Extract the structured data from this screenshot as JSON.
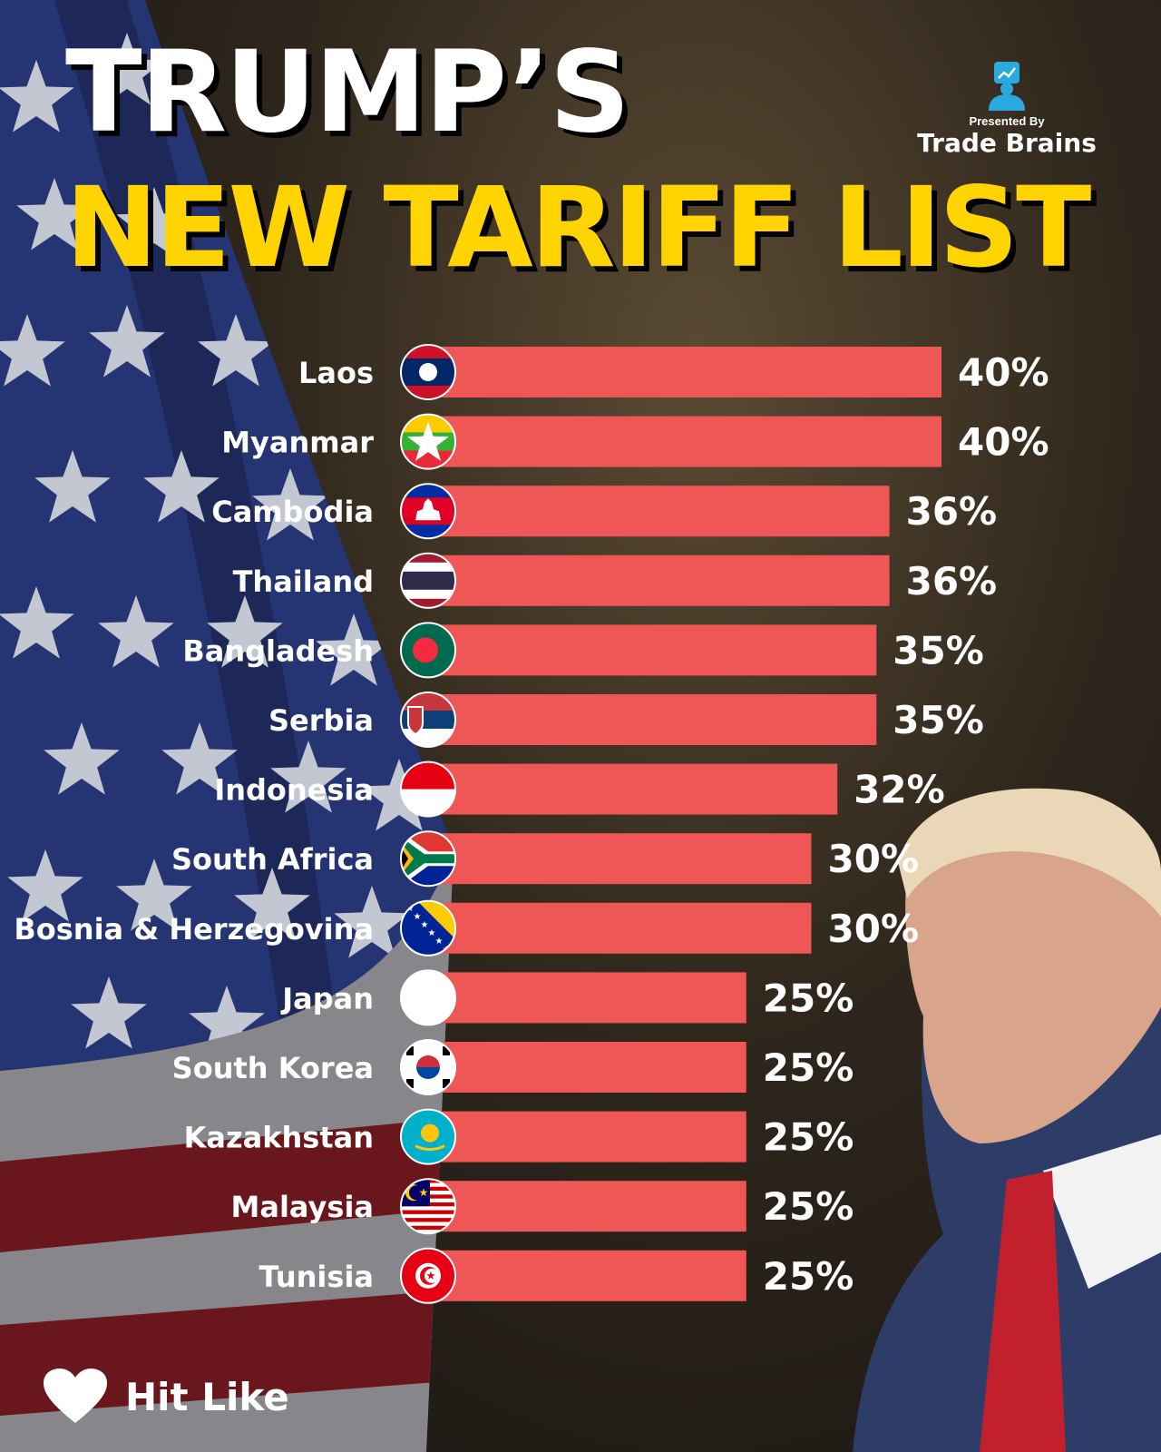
{
  "header": {
    "line1": "TRUMP’S",
    "line2": "NEW TARIFF LIST",
    "presented_by": "Presented By",
    "brand_name": "Trade Brains",
    "brand_icon": "trade-brains-logo-icon"
  },
  "cta": {
    "label": "Hit Like",
    "icon": "heart-icon"
  },
  "colors": {
    "bar": "#ef5656",
    "title_yellow": "#ffd400",
    "flag_blue": "#2f3f86",
    "flag_red": "#b5232e"
  },
  "chart_data": {
    "type": "bar",
    "orientation": "horizontal",
    "title": "TRUMP’S NEW TARIFF LIST",
    "xlim": [
      0,
      40
    ],
    "categories": [
      "Laos",
      "Myanmar",
      "Cambodia",
      "Thailand",
      "Bangladesh",
      "Serbia",
      "Indonesia",
      "South Africa",
      "Bosnia & Herzegovina",
      "Japan",
      "South Korea",
      "Kazakhstan",
      "Malaysia",
      "Tunisia"
    ],
    "values": [
      40,
      40,
      36,
      36,
      35,
      35,
      32,
      30,
      30,
      25,
      25,
      25,
      25,
      25
    ],
    "value_labels": [
      "40%",
      "40%",
      "36%",
      "36%",
      "35%",
      "35%",
      "32%",
      "30%",
      "30%",
      "25%",
      "25%",
      "25%",
      "25%",
      "25%"
    ],
    "flags": [
      "laos-flag-icon",
      "myanmar-flag-icon",
      "cambodia-flag-icon",
      "thailand-flag-icon",
      "bangladesh-flag-icon",
      "serbia-flag-icon",
      "indonesia-flag-icon",
      "south-africa-flag-icon",
      "bosnia-flag-icon",
      "japan-flag-icon",
      "south-korea-flag-icon",
      "kazakhstan-flag-icon",
      "malaysia-flag-icon",
      "tunisia-flag-icon"
    ]
  }
}
